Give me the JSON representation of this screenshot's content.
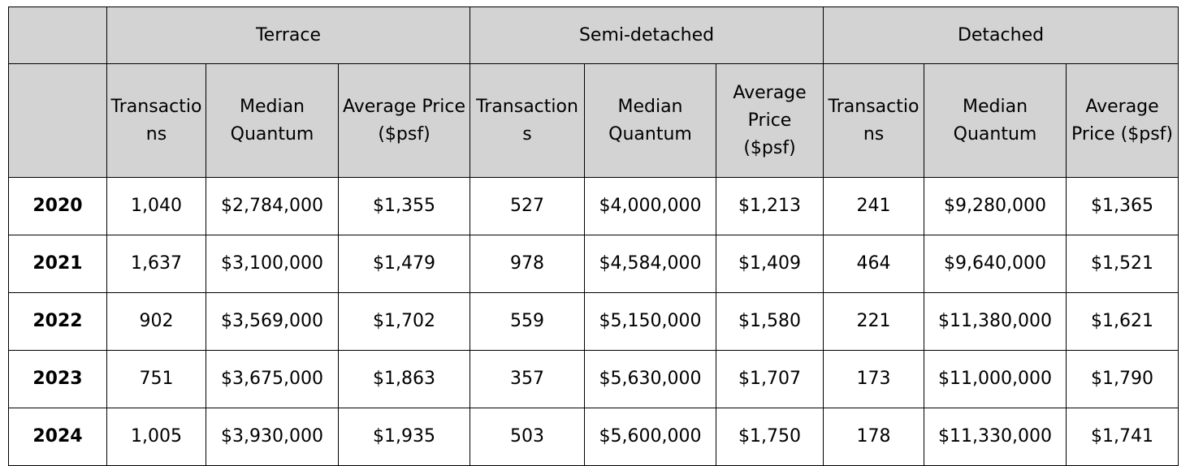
{
  "table": {
    "groups": [
      "Terrace",
      "Semi-detached",
      "Detached"
    ],
    "columns": [
      "Transactions",
      "Median Quantum",
      "Average Price ($psf)",
      "Transactions",
      "Median Quantum",
      "Average Price ($psf)",
      "Transactions",
      "Median Quantum",
      "Average Price ($psf)"
    ],
    "rows": [
      [
        "2020",
        "1,040",
        "$2,784,000",
        "$1,355",
        "527",
        "$4,000,000",
        "$1,213",
        "241",
        "$9,280,000",
        "$1,365"
      ],
      [
        "2021",
        "1,637",
        "$3,100,000",
        "$1,479",
        "978",
        "$4,584,000",
        "$1,409",
        "464",
        "$9,640,000",
        "$1,521"
      ],
      [
        "2022",
        "902",
        "$3,569,000",
        "$1,702",
        "559",
        "$5,150,000",
        "$1,580",
        "221",
        "$11,380,000",
        "$1,621"
      ],
      [
        "2023",
        "751",
        "$3,675,000",
        "$1,863",
        "357",
        "$5,630,000",
        "$1,707",
        "173",
        "$11,000,000",
        "$1,790"
      ],
      [
        "2024",
        "1,005",
        "$3,930,000",
        "$1,935",
        "503",
        "$5,600,000",
        "$1,750",
        "178",
        "$11,330,000",
        "$1,741"
      ]
    ]
  }
}
